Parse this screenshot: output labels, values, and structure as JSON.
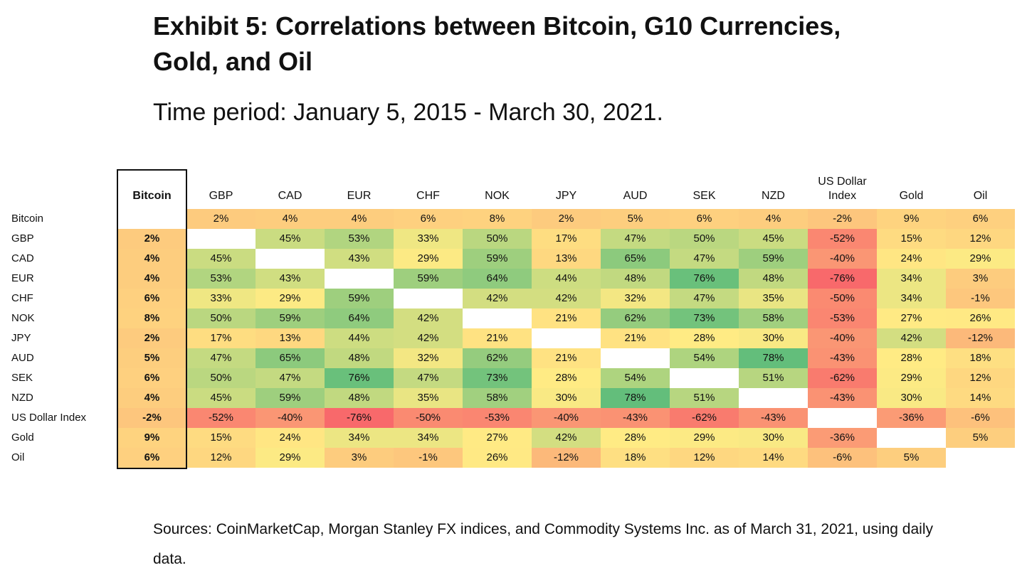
{
  "title": "Exhibit 5: Correlations between Bitcoin, G10 Currencies, Gold, and Oil",
  "subtitle": "Time period: January 5, 2015 - March 30, 2021.",
  "sources": "Sources: CoinMarketCap, Morgan Stanley FX indices, and Commodity Systems Inc. as of March 31, 2021, using daily data.",
  "chart_data": {
    "type": "heatmap",
    "unit": "%",
    "columns": [
      "Bitcoin",
      "GBP",
      "CAD",
      "EUR",
      "CHF",
      "NOK",
      "JPY",
      "AUD",
      "SEK",
      "NZD",
      "US Dollar Index",
      "Gold",
      "Oil"
    ],
    "rows": [
      "Bitcoin",
      "GBP",
      "CAD",
      "EUR",
      "CHF",
      "NOK",
      "JPY",
      "AUD",
      "SEK",
      "NZD",
      "US Dollar Index",
      "Gold",
      "Oil"
    ],
    "values": [
      [
        null,
        2,
        4,
        4,
        6,
        8,
        2,
        5,
        6,
        4,
        -2,
        9,
        6
      ],
      [
        2,
        null,
        45,
        53,
        33,
        50,
        17,
        47,
        50,
        45,
        -52,
        15,
        12
      ],
      [
        4,
        45,
        null,
        43,
        29,
        59,
        13,
        65,
        47,
        59,
        -40,
        24,
        29
      ],
      [
        4,
        53,
        43,
        null,
        59,
        64,
        44,
        48,
        76,
        48,
        -76,
        34,
        3
      ],
      [
        6,
        33,
        29,
        59,
        null,
        42,
        42,
        32,
        47,
        35,
        -50,
        34,
        -1
      ],
      [
        8,
        50,
        59,
        64,
        42,
        null,
        21,
        62,
        73,
        58,
        -53,
        27,
        26
      ],
      [
        2,
        17,
        13,
        44,
        42,
        21,
        null,
        21,
        28,
        30,
        -40,
        42,
        -12
      ],
      [
        5,
        47,
        65,
        48,
        32,
        62,
        21,
        null,
        54,
        78,
        -43,
        28,
        18
      ],
      [
        6,
        50,
        47,
        76,
        47,
        73,
        28,
        54,
        null,
        51,
        -62,
        29,
        12
      ],
      [
        4,
        45,
        59,
        48,
        35,
        58,
        30,
        78,
        51,
        null,
        -43,
        30,
        14
      ],
      [
        -2,
        -52,
        -40,
        -76,
        -50,
        -53,
        -40,
        -43,
        -62,
        -43,
        null,
        -36,
        -6
      ],
      [
        9,
        15,
        24,
        34,
        34,
        27,
        42,
        28,
        29,
        30,
        -36,
        null,
        5
      ],
      [
        6,
        12,
        29,
        3,
        -1,
        26,
        -12,
        18,
        12,
        14,
        -6,
        5,
        null
      ]
    ],
    "highlighted_column": "Bitcoin",
    "color_scale": {
      "low": "#f8696b",
      "mid": "#ffeb84",
      "high": "#63be7b",
      "min": -76,
      "mid_value": 28,
      "max": 78
    }
  }
}
